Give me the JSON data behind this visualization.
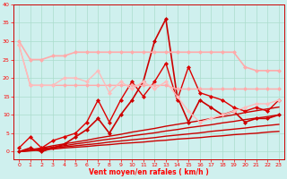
{
  "xlabel": "Vent moyen/en rafales ( km/h )",
  "background_color": "#cff0ee",
  "grid_color": "#aaddcc",
  "xlim": [
    -0.5,
    23.5
  ],
  "ylim": [
    -2,
    40
  ],
  "yticks": [
    0,
    5,
    10,
    15,
    20,
    25,
    30,
    35,
    40
  ],
  "xticks": [
    0,
    1,
    2,
    3,
    4,
    5,
    6,
    7,
    8,
    9,
    10,
    11,
    12,
    13,
    14,
    15,
    16,
    17,
    18,
    19,
    20,
    21,
    22,
    23
  ],
  "lines": [
    {
      "x": [
        0,
        1,
        2,
        3,
        4,
        5,
        6,
        7,
        8,
        9,
        10,
        11,
        12,
        13,
        14,
        15,
        16,
        17,
        18,
        19,
        20,
        21,
        22,
        23
      ],
      "y": [
        0,
        0.4,
        0.8,
        1.2,
        1.6,
        2.1,
        2.5,
        3.0,
        3.4,
        3.8,
        4.3,
        4.7,
        5.1,
        5.6,
        6.0,
        6.5,
        6.9,
        7.3,
        7.8,
        8.2,
        8.7,
        9.1,
        9.5,
        10.0
      ],
      "color": "#cc0000",
      "lw": 1.0,
      "marker": null,
      "ms": 3,
      "alpha": 1.0
    },
    {
      "x": [
        0,
        1,
        2,
        3,
        4,
        5,
        6,
        7,
        8,
        9,
        10,
        11,
        12,
        13,
        14,
        15,
        16,
        17,
        18,
        19,
        20,
        21,
        22,
        23
      ],
      "y": [
        0,
        0.5,
        1.0,
        1.6,
        2.1,
        2.6,
        3.1,
        3.7,
        4.2,
        4.7,
        5.3,
        5.8,
        6.3,
        6.9,
        7.4,
        7.9,
        8.4,
        9.0,
        9.5,
        10.0,
        10.6,
        11.1,
        11.6,
        12.1
      ],
      "color": "#cc0000",
      "lw": 1.0,
      "marker": null,
      "ms": 3,
      "alpha": 1.0
    },
    {
      "x": [
        0,
        1,
        2,
        3,
        4,
        5,
        6,
        7,
        8,
        9,
        10,
        11,
        12,
        13,
        14,
        15,
        16,
        17,
        18,
        19,
        20,
        21,
        22,
        23
      ],
      "y": [
        0,
        0.3,
        0.6,
        0.9,
        1.3,
        1.6,
        1.9,
        2.2,
        2.6,
        2.9,
        3.2,
        3.5,
        3.8,
        4.2,
        4.5,
        4.8,
        5.1,
        5.5,
        5.8,
        6.1,
        6.4,
        6.8,
        7.1,
        7.4
      ],
      "color": "#cc0000",
      "lw": 1.0,
      "marker": null,
      "ms": 3,
      "alpha": 1.0
    },
    {
      "x": [
        0,
        1,
        2,
        3,
        4,
        5,
        6,
        7,
        8,
        9,
        10,
        11,
        12,
        13,
        14,
        15,
        16,
        17,
        18,
        19,
        20,
        21,
        22,
        23
      ],
      "y": [
        0,
        0.2,
        0.5,
        0.7,
        1.0,
        1.2,
        1.4,
        1.7,
        1.9,
        2.2,
        2.4,
        2.6,
        2.9,
        3.1,
        3.4,
        3.6,
        3.8,
        4.1,
        4.3,
        4.6,
        4.8,
        5.0,
        5.3,
        5.5
      ],
      "color": "#cc0000",
      "lw": 1.0,
      "marker": null,
      "ms": 3,
      "alpha": 1.0
    },
    {
      "x": [
        0,
        1,
        2,
        3,
        4,
        5,
        6,
        7,
        8,
        9,
        10,
        11,
        12,
        13,
        14,
        15,
        16,
        17,
        18,
        19,
        20,
        21,
        22,
        23
      ],
      "y": [
        1,
        4,
        1,
        3,
        4,
        5,
        8,
        14,
        8,
        14,
        19,
        15,
        19,
        24,
        14,
        23,
        16,
        15,
        14,
        12,
        11,
        12,
        11,
        14
      ],
      "color": "#dd0000",
      "lw": 1.0,
      "marker": "D",
      "ms": 2,
      "alpha": 1.0
    },
    {
      "x": [
        0,
        1,
        2,
        3,
        4,
        5,
        6,
        7,
        8,
        9,
        10,
        11,
        12,
        13,
        14,
        15,
        16,
        17,
        18,
        19,
        20,
        21,
        22,
        23
      ],
      "y": [
        0,
        1,
        0,
        1,
        2,
        4,
        6,
        9,
        5,
        10,
        14,
        19,
        30,
        36,
        15,
        8,
        14,
        12,
        10,
        11,
        8,
        9,
        9,
        10
      ],
      "color": "#cc0000",
      "lw": 1.2,
      "marker": "D",
      "ms": 2,
      "alpha": 1.0
    },
    {
      "x": [
        0,
        1,
        2,
        3,
        4,
        5,
        6,
        7,
        8,
        9,
        10,
        11,
        12,
        13,
        14,
        15,
        16,
        17,
        18,
        19,
        20,
        21,
        22,
        23
      ],
      "y": [
        30,
        25,
        25,
        26,
        26,
        27,
        27,
        27,
        27,
        27,
        27,
        27,
        27,
        27,
        27,
        27,
        27,
        27,
        27,
        27,
        23,
        22,
        22,
        22
      ],
      "color": "#ffaaaa",
      "lw": 1.2,
      "marker": "D",
      "ms": 2,
      "alpha": 1.0
    },
    {
      "x": [
        0,
        1,
        2,
        3,
        4,
        5,
        6,
        7,
        8,
        9,
        10,
        11,
        12,
        13,
        14,
        15,
        16,
        17,
        18,
        19,
        20,
        21,
        22,
        23
      ],
      "y": [
        29,
        18,
        18,
        18,
        18,
        18,
        18,
        18,
        18,
        18,
        18,
        18,
        18,
        18,
        17,
        17,
        17,
        17,
        17,
        17,
        17,
        17,
        17,
        17
      ],
      "color": "#ffaaaa",
      "lw": 1.0,
      "marker": "D",
      "ms": 2,
      "alpha": 1.0
    },
    {
      "x": [
        0,
        1,
        2,
        3,
        4,
        5,
        6,
        7,
        8,
        9,
        10,
        11,
        12,
        13,
        14,
        15,
        16,
        17,
        18,
        19,
        20,
        21,
        22,
        23
      ],
      "y": [
        29,
        18,
        18,
        18,
        20,
        20,
        19,
        22,
        16,
        19,
        17,
        19,
        17,
        19,
        15,
        11,
        8,
        9,
        10,
        11,
        12,
        13,
        13,
        14
      ],
      "color": "#ffbbbb",
      "lw": 1.0,
      "marker": "D",
      "ms": 2,
      "alpha": 1.0
    }
  ]
}
